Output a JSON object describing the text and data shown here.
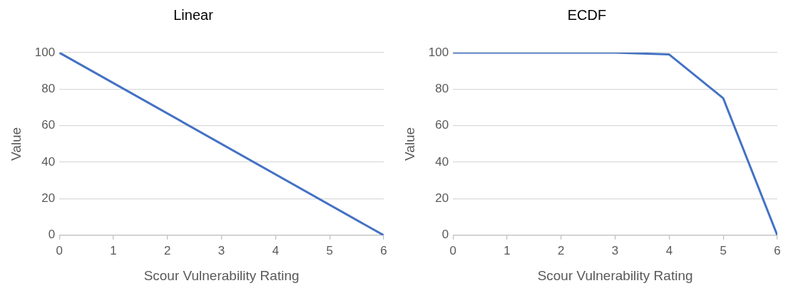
{
  "chart_data": [
    {
      "type": "line",
      "title": "Linear",
      "xlabel": "Scour Vulnerability Rating",
      "ylabel": "Value",
      "x": [
        0,
        6
      ],
      "values": [
        100,
        0
      ],
      "color": "#4472c4",
      "xlim": [
        0,
        6
      ],
      "xticks": [
        0,
        1,
        2,
        3,
        4,
        5,
        6
      ],
      "ylim": [
        0,
        100
      ],
      "yticks": [
        0,
        20,
        40,
        60,
        80,
        100
      ],
      "grid": "y",
      "legend": false,
      "marker": "none"
    },
    {
      "type": "line",
      "title": "ECDF",
      "xlabel": "Scour Vulnerability Rating",
      "ylabel": "Value",
      "x": [
        0,
        1,
        2,
        3,
        4,
        5,
        6
      ],
      "values": [
        100,
        100,
        100,
        100,
        99,
        75,
        0
      ],
      "color": "#4472c4",
      "xlim": [
        0,
        6
      ],
      "xticks": [
        0,
        1,
        2,
        3,
        4,
        5,
        6
      ],
      "ylim": [
        0,
        100
      ],
      "yticks": [
        0,
        20,
        40,
        60,
        80,
        100
      ],
      "grid": "y",
      "legend": false,
      "marker": "none"
    }
  ]
}
